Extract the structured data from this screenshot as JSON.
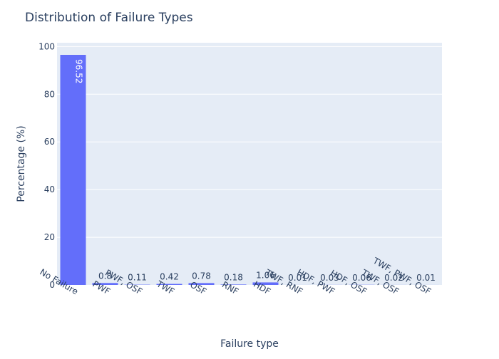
{
  "chart_data": {
    "type": "bar",
    "title": "Distribution of Failure Types",
    "xlabel": "Failure type",
    "ylabel": "Percentage (%)",
    "categories": [
      "No Failure",
      "PWF",
      "PWF, OSF",
      "TWF",
      "OSF",
      "RNF",
      "HDF",
      "TWF, RNF",
      "HDF, PWF",
      "HDF, OSF",
      "TWF, OSF",
      "TWF, PWF, OSF"
    ],
    "values": [
      96.52,
      0.8,
      0.11,
      0.42,
      0.78,
      0.18,
      1.06,
      0.01,
      0.03,
      0.06,
      0.02,
      0.01
    ],
    "data_labels": [
      "96.52",
      "0.8",
      "0.11",
      "0.42",
      "0.78",
      "0.18",
      "1.06",
      "0.01",
      "0.03",
      "0.06",
      "0.02",
      "0.01"
    ],
    "ylim": [
      0,
      101.6
    ],
    "yticks": [
      0,
      20,
      40,
      60,
      80,
      100
    ],
    "grid": true,
    "legend": "none",
    "colors": {
      "bar": "#636efa",
      "plot_bg": "#e5ecf6",
      "grid": "#ffffff",
      "text": "#2a3f5f"
    }
  }
}
